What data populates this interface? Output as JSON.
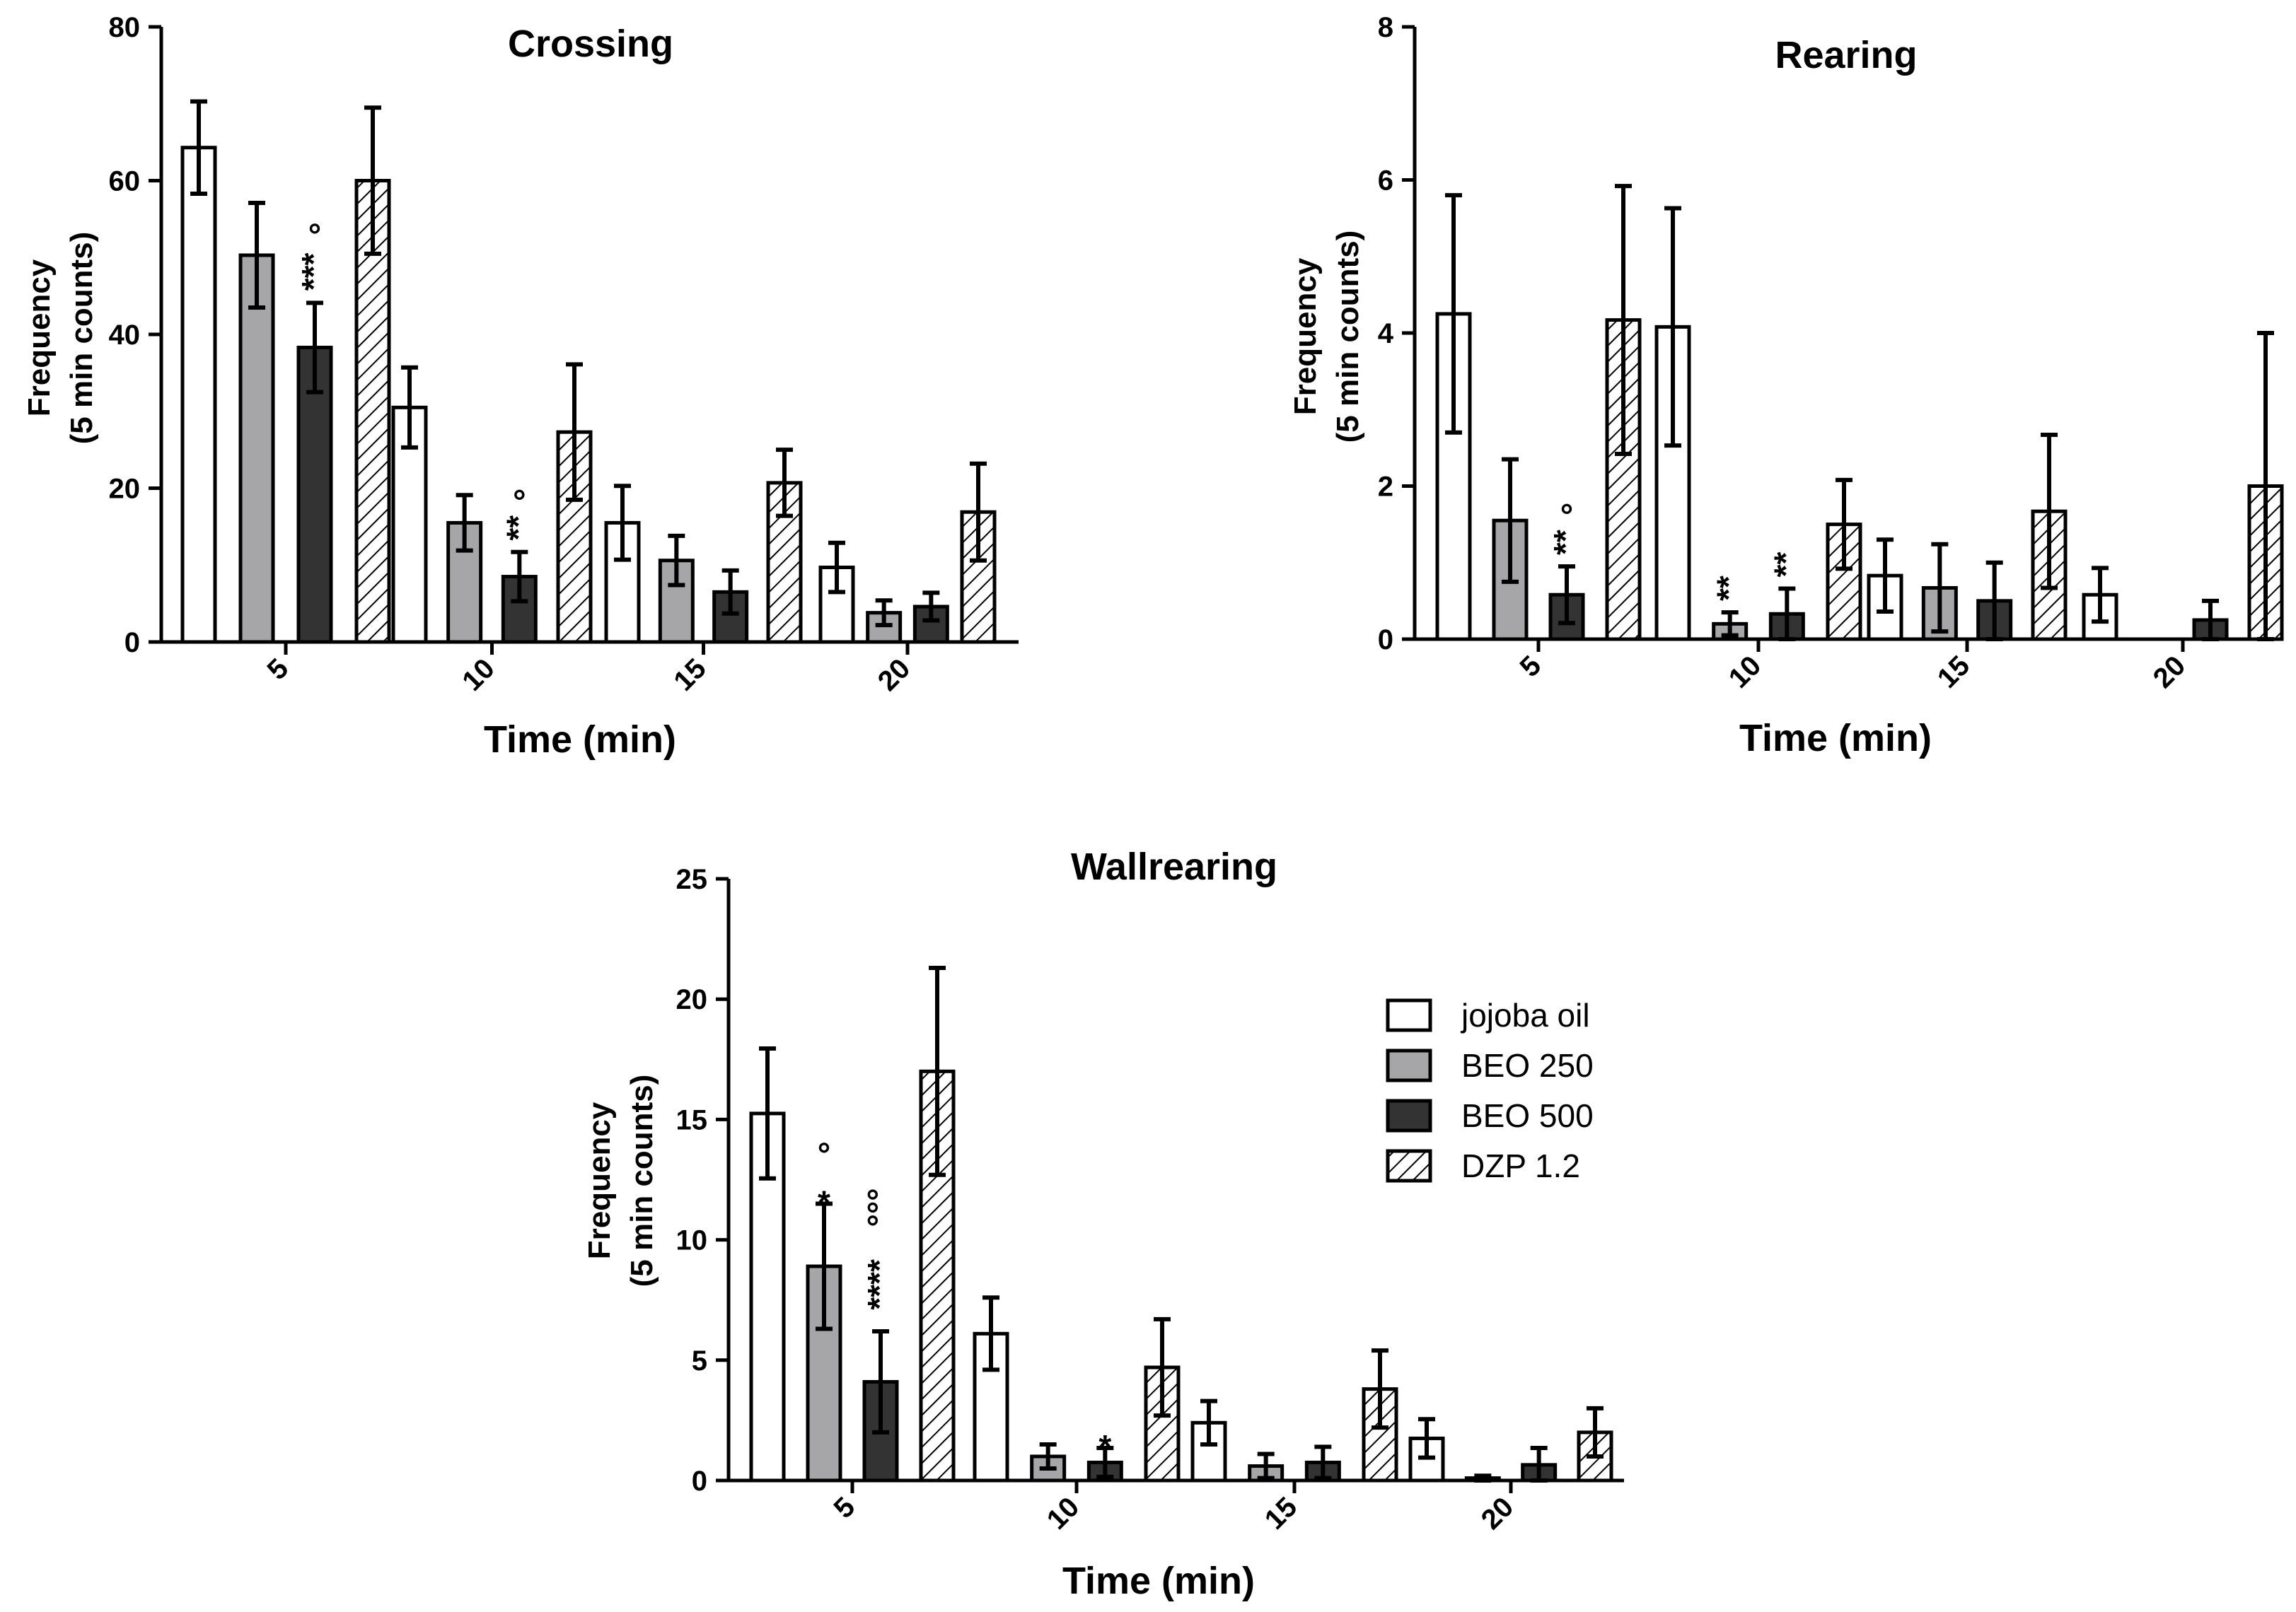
{
  "chart_data": [
    {
      "id": "crossing",
      "type": "bar",
      "title": "Crossing",
      "xlabel": "Time (min)",
      "ylabel": [
        "Frequency",
        "(5 min counts)"
      ],
      "categories": [
        "5",
        "10",
        "15",
        "20"
      ],
      "ylim": [
        0,
        80
      ],
      "yticks": [
        0,
        20,
        40,
        60,
        80
      ],
      "series": [
        {
          "name": "jojoba oil",
          "values": [
            64.3,
            30.5,
            15.5,
            9.7
          ],
          "errors": [
            6.0,
            5.2,
            4.8,
            3.2
          ]
        },
        {
          "name": "BEO 250",
          "values": [
            50.3,
            15.5,
            10.6,
            3.8
          ],
          "errors": [
            6.8,
            3.6,
            3.2,
            1.6
          ]
        },
        {
          "name": "BEO 500",
          "values": [
            38.3,
            8.5,
            6.5,
            4.6
          ],
          "errors": [
            5.8,
            3.2,
            2.8,
            1.8
          ]
        },
        {
          "name": "DZP 1.2",
          "values": [
            60.0,
            27.3,
            20.7,
            16.9
          ],
          "errors": [
            9.5,
            8.8,
            4.3,
            6.3
          ]
        }
      ],
      "annotations": [
        {
          "group": 0,
          "series": 2,
          "lines": [
            "°",
            "***"
          ]
        },
        {
          "group": 1,
          "series": 2,
          "lines": [
            "°",
            "**"
          ]
        }
      ]
    },
    {
      "id": "rearing",
      "type": "bar",
      "title": "Rearing",
      "xlabel": "Time (min)",
      "ylabel": [
        "Frequency",
        "(5 min counts)"
      ],
      "categories": [
        "5",
        "10",
        "15",
        "20"
      ],
      "ylim": [
        0,
        8
      ],
      "yticks": [
        0,
        2,
        4,
        6,
        8
      ],
      "series": [
        {
          "name": "jojoba oil",
          "values": [
            4.25,
            4.08,
            0.83,
            0.58
          ],
          "errors": [
            1.55,
            1.55,
            0.47,
            0.35
          ]
        },
        {
          "name": "BEO 250",
          "values": [
            1.55,
            0.2,
            0.67,
            0.0
          ],
          "errors": [
            0.8,
            0.15,
            0.57,
            0.0
          ]
        },
        {
          "name": "BEO 500",
          "values": [
            0.58,
            0.33,
            0.5,
            0.25
          ],
          "errors": [
            0.37,
            0.33,
            0.5,
            0.25
          ]
        },
        {
          "name": "DZP 1.2",
          "values": [
            4.17,
            1.5,
            1.67,
            2.0
          ],
          "errors": [
            1.75,
            0.58,
            1.0,
            2.0
          ]
        }
      ],
      "annotations": [
        {
          "group": 0,
          "series": 2,
          "lines": [
            "°",
            "**"
          ]
        },
        {
          "group": 1,
          "series": 1,
          "lines": [
            "**"
          ]
        },
        {
          "group": 1,
          "series": 2,
          "lines": [
            "**"
          ]
        }
      ]
    },
    {
      "id": "wallrearing",
      "type": "bar",
      "title": "Wallrearing",
      "xlabel": "Time (min)",
      "ylabel": [
        "Frequency",
        "(5 min counts)"
      ],
      "categories": [
        "5",
        "10",
        "15",
        "20"
      ],
      "ylim": [
        0,
        25
      ],
      "yticks": [
        0,
        5,
        10,
        15,
        20,
        25
      ],
      "series": [
        {
          "name": "jojoba oil",
          "values": [
            15.25,
            6.1,
            2.4,
            1.75
          ],
          "errors": [
            2.7,
            1.5,
            0.9,
            0.8
          ]
        },
        {
          "name": "BEO 250",
          "values": [
            8.9,
            1.0,
            0.6,
            0.1
          ],
          "errors": [
            2.6,
            0.5,
            0.5,
            0.1
          ]
        },
        {
          "name": "BEO 500",
          "values": [
            4.1,
            0.75,
            0.75,
            0.65
          ],
          "errors": [
            2.1,
            0.6,
            0.65,
            0.7
          ]
        },
        {
          "name": "DZP 1.2",
          "values": [
            17.0,
            4.7,
            3.8,
            2.0
          ],
          "errors": [
            4.3,
            2.0,
            1.6,
            1.0
          ]
        }
      ],
      "annotations": [
        {
          "group": 0,
          "series": 1,
          "lines": [
            "°",
            "*"
          ]
        },
        {
          "group": 0,
          "series": 2,
          "lines": [
            "°°°",
            "****"
          ],
          "vertical": true
        },
        {
          "group": 1,
          "series": 2,
          "lines": [
            "*"
          ]
        }
      ]
    }
  ],
  "legend": {
    "entries": [
      {
        "label": "jojoba oil",
        "style": "white"
      },
      {
        "label": "BEO 250",
        "style": "gray"
      },
      {
        "label": "BEO 500",
        "style": "dark"
      },
      {
        "label": "DZP 1.2",
        "style": "hatch"
      }
    ]
  },
  "colors": {
    "white": "#ffffff",
    "gray": "#a6a6a9",
    "dark": "#333333",
    "stroke": "#000000"
  }
}
